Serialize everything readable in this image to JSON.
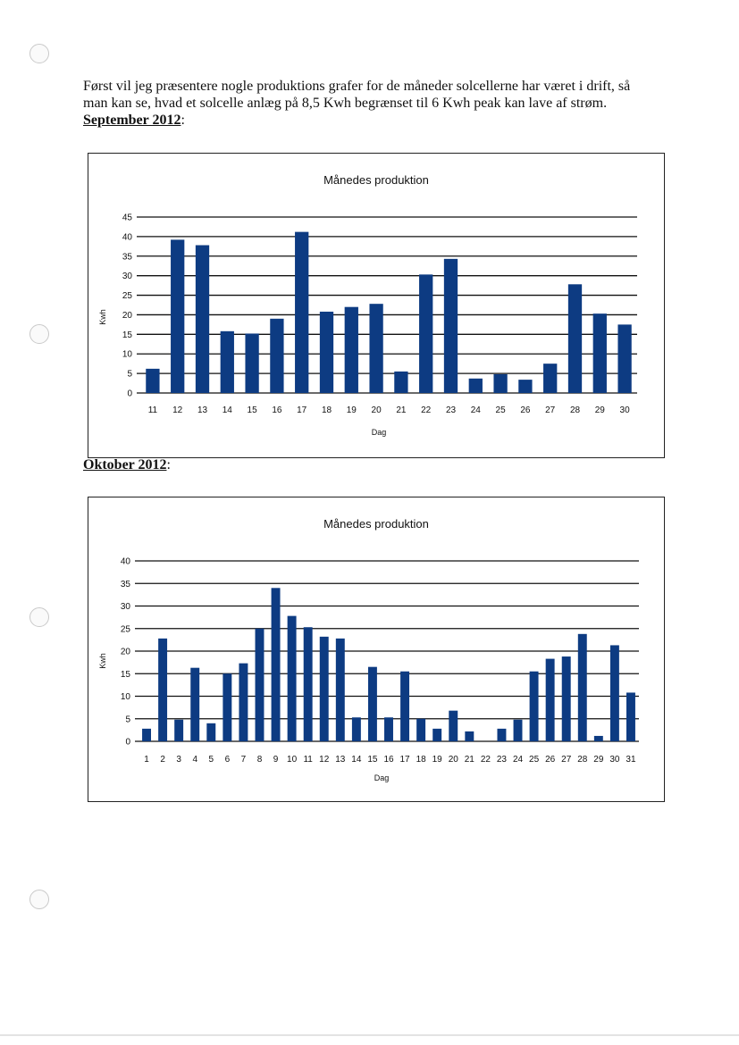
{
  "intro": {
    "line1": "Først vil jeg præsentere nogle produktions grafer for de måneder solcellerne har været i drift, så",
    "line2": "man kan se, hvad et solcelle anlæg på 8,5 Kwh begrænset til 6 Kwh peak kan lave af strøm."
  },
  "sections": [
    {
      "heading": "September 2012",
      "colon": ":"
    },
    {
      "heading": "Oktober 2012",
      "colon": ":"
    }
  ],
  "colors": {
    "bar": "#0d3b82",
    "grid": "#111111"
  },
  "chart_data": [
    {
      "type": "bar",
      "title": "Månedes produktion",
      "xlabel": "Dag",
      "ylabel": "Kwh",
      "ylim": [
        0,
        45
      ],
      "yticks": [
        0,
        5,
        10,
        15,
        20,
        25,
        30,
        35,
        40,
        45
      ],
      "grid": true,
      "categories": [
        "11",
        "12",
        "13",
        "14",
        "15",
        "16",
        "17",
        "18",
        "19",
        "20",
        "21",
        "22",
        "23",
        "24",
        "25",
        "26",
        "27",
        "28",
        "29",
        "30"
      ],
      "values": [
        6.2,
        39.2,
        37.8,
        15.8,
        15.2,
        19.0,
        41.2,
        20.8,
        22.0,
        22.8,
        5.5,
        30.3,
        34.3,
        3.7,
        4.8,
        3.4,
        7.5,
        27.8,
        20.3,
        17.5
      ]
    },
    {
      "type": "bar",
      "title": "Månedes produktion",
      "xlabel": "Dag",
      "ylabel": "Kwh",
      "ylim": [
        0,
        40
      ],
      "yticks": [
        0,
        5,
        10,
        15,
        20,
        25,
        30,
        35,
        40
      ],
      "grid": true,
      "categories": [
        "1",
        "2",
        "3",
        "4",
        "5",
        "6",
        "7",
        "8",
        "9",
        "10",
        "11",
        "12",
        "13",
        "14",
        "15",
        "16",
        "17",
        "18",
        "19",
        "20",
        "21",
        "22",
        "23",
        "24",
        "25",
        "26",
        "27",
        "28",
        "29",
        "30",
        "31"
      ],
      "values": [
        2.8,
        22.8,
        4.8,
        16.3,
        4.0,
        15.0,
        17.3,
        25.0,
        34.0,
        27.8,
        25.3,
        23.2,
        22.8,
        5.3,
        16.5,
        5.3,
        15.5,
        5.0,
        2.8,
        6.8,
        2.2,
        0.0,
        2.8,
        4.8,
        15.5,
        18.3,
        18.8,
        23.8,
        1.2,
        21.3,
        10.8
      ]
    }
  ]
}
